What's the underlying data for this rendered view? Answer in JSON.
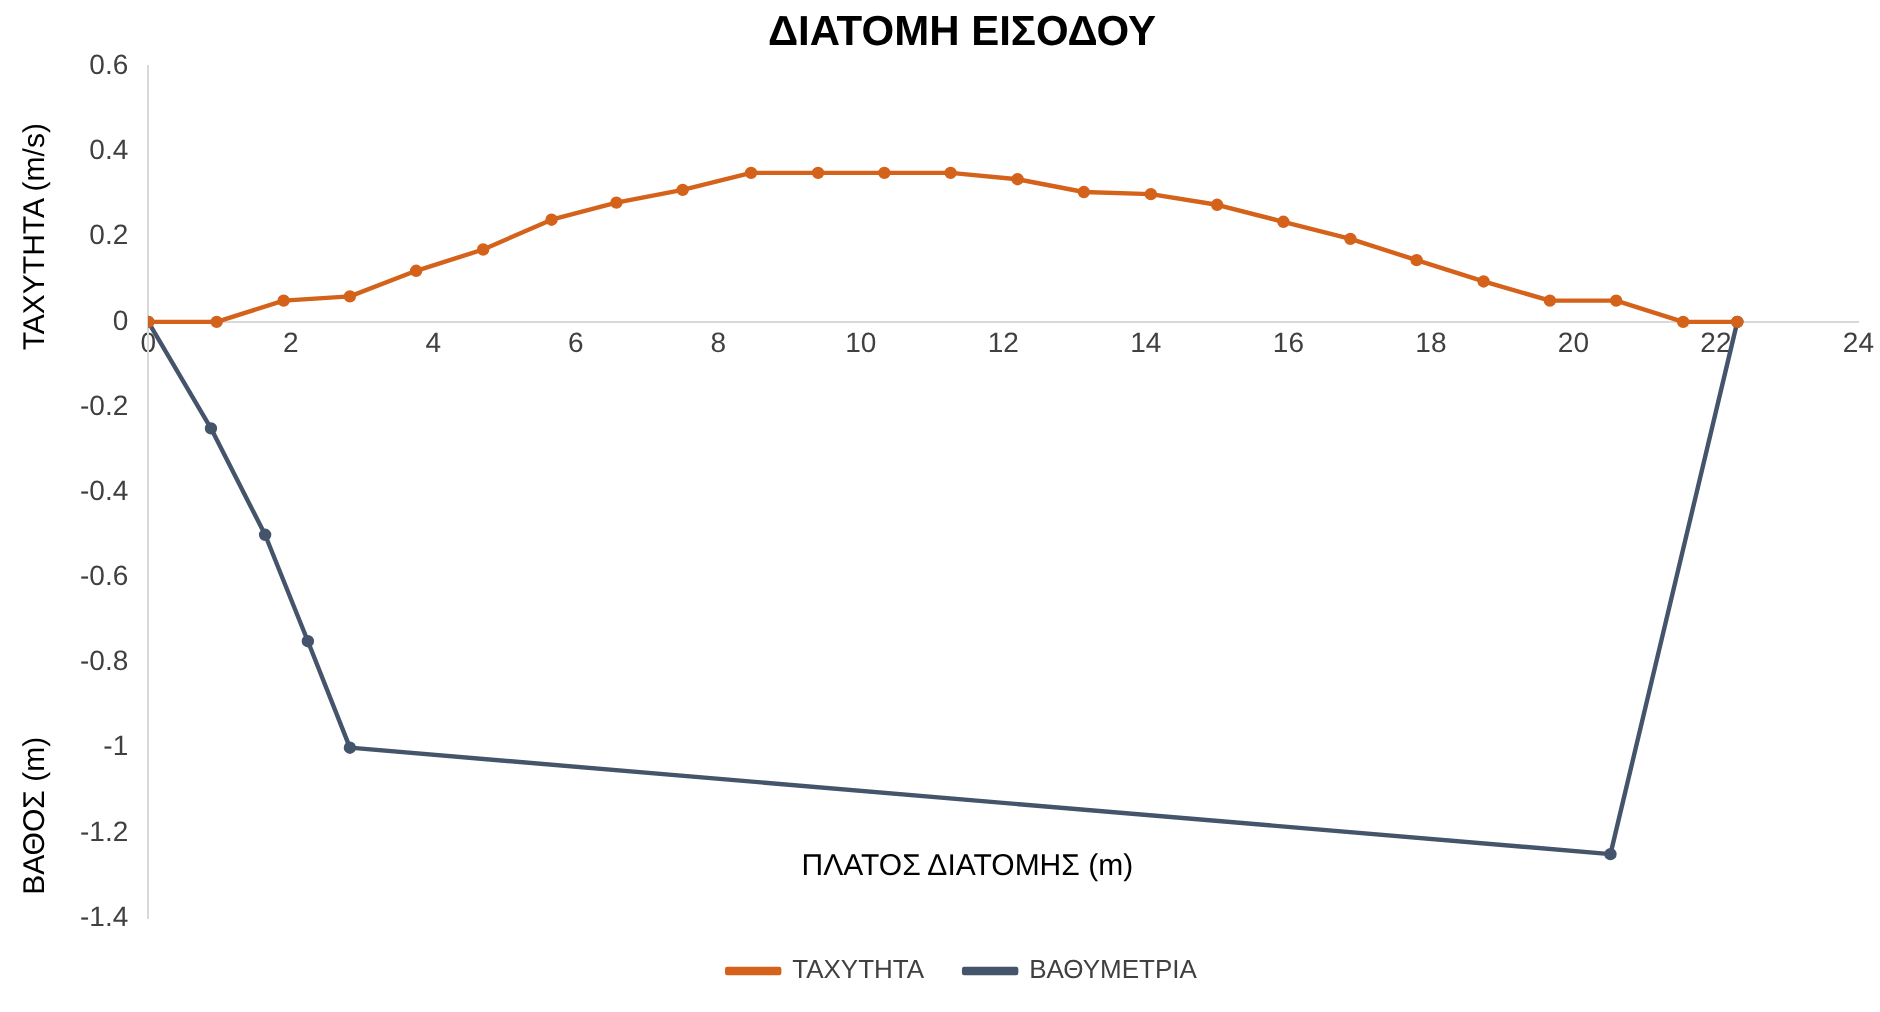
{
  "chart_data": {
    "type": "line",
    "title": "ΔΙΑΤΟΜΗ ΕΙΣΟΔΟΥ",
    "xlabel": "ΠΛΑΤΟΣ ΔΙΑΤΟΜΗΣ (m)",
    "ylabel": "ΤΑΧΥΤΗΤΑ (m/s)",
    "annotations": [
      "ΒΑΘΟΣ (m)"
    ],
    "xlim": [
      0,
      24
    ],
    "xticks": [
      0,
      2,
      4,
      6,
      8,
      10,
      12,
      14,
      16,
      18,
      20,
      22,
      24
    ],
    "ylim": [
      -1.4,
      0.6
    ],
    "yticks": [
      -1.4,
      -1.2,
      -1,
      -0.8,
      -0.6,
      -0.4,
      -0.2,
      0,
      0.2,
      0.4,
      0.6
    ],
    "grid": false,
    "legend": "bottom",
    "marker": "circle",
    "line_style": "solid",
    "series": [
      {
        "name": "ΤΑΧΥΤΗΤΑ",
        "color": "#d4621a",
        "x": [
          0,
          0.96,
          1.9,
          2.83,
          3.76,
          4.7,
          5.66,
          6.57,
          7.5,
          8.46,
          9.4,
          10.33,
          11.26,
          12.2,
          13.13,
          14.07,
          15,
          15.93,
          16.87,
          17.8,
          18.74,
          19.67,
          20.6,
          21.54,
          22.3
        ],
        "values": [
          0,
          0,
          0.05,
          0.06,
          0.12,
          0.17,
          0.24,
          0.28,
          0.31,
          0.35,
          0.35,
          0.35,
          0.35,
          0.335,
          0.305,
          0.3,
          0.275,
          0.235,
          0.195,
          0.145,
          0.095,
          0.05,
          0.05,
          0,
          0
        ]
      },
      {
        "name": "ΒΑΘΥΜΕΤΡΙΑ",
        "color": "#44546a",
        "x": [
          0,
          0.88,
          1.64,
          2.24,
          2.83,
          20.52,
          22.3
        ],
        "values": [
          0,
          -0.25,
          -0.5,
          -0.75,
          -1,
          -1.25,
          0
        ]
      }
    ]
  }
}
